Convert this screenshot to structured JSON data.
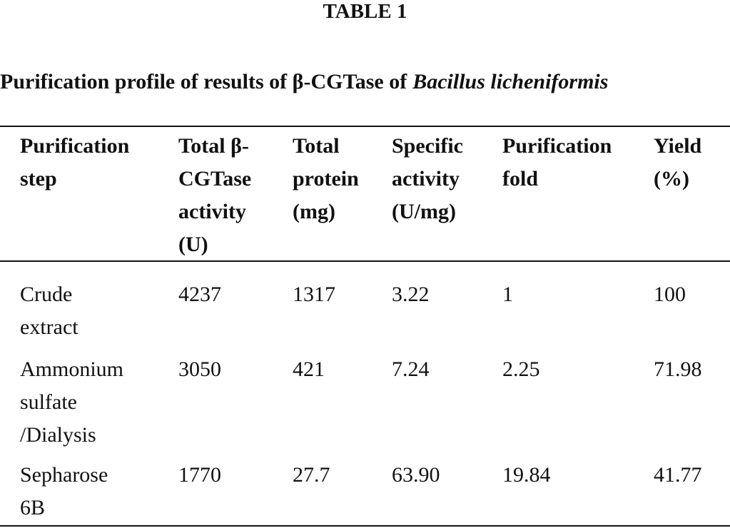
{
  "title": "TABLE 1",
  "caption": {
    "text": "Purification profile of results of β-CGTase of",
    "organism": "Bacillus licheniformis"
  },
  "table": {
    "header": [
      [
        "Purification",
        "step"
      ],
      [
        "Total β-",
        "CGTase",
        "activity",
        "(U)"
      ],
      [
        "Total",
        "protein",
        "(mg)"
      ],
      [
        "Specific",
        "activity",
        "(U/mg)"
      ],
      [
        "Purification",
        "fold"
      ],
      [
        "Yield",
        "(%)"
      ]
    ],
    "rows": [
      [
        [
          "Crude",
          "extract"
        ],
        "4237",
        "1317",
        "3.22",
        "1",
        "100"
      ],
      [
        [
          "Ammonium",
          "sulfate",
          "/Dialysis"
        ],
        "3050",
        "421",
        "7.24",
        "2.25",
        "71.98"
      ],
      [
        [
          "Sepharose",
          "6B"
        ],
        "1770",
        "27.7",
        "63.90",
        "19.84",
        "41.77"
      ]
    ]
  }
}
